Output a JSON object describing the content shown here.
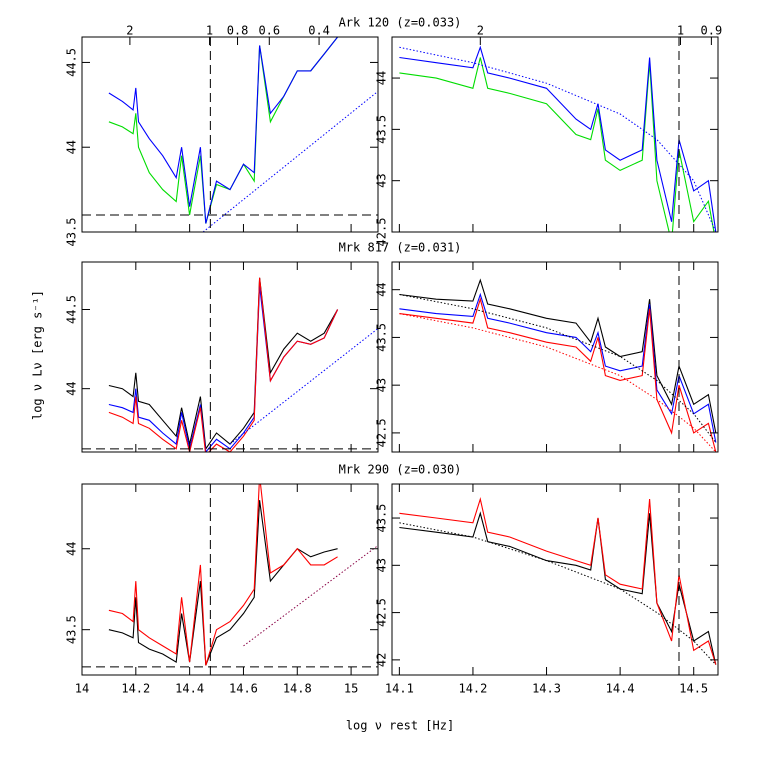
{
  "figure": {
    "xlabel": "log ν rest [Hz]",
    "ylabel": "log ν Lν [erg s⁻¹]"
  },
  "chart_data": [
    {
      "type": "line",
      "title": "Ark 120 (z=0.033)",
      "xlim": [
        14,
        15.1
      ],
      "ylim": [
        43.5,
        44.65
      ],
      "yticks": [
        43.5,
        44,
        44.5
      ],
      "xticks": [
        14,
        14.2,
        14.4,
        14.6,
        14.8,
        15
      ],
      "show_xtick_labels": false,
      "x2ticks": [
        {
          "value": 14.178,
          "label": "2"
        },
        {
          "value": 14.474,
          "label": "1"
        },
        {
          "value": 14.578,
          "label": "0.8"
        },
        {
          "value": 14.696,
          "label": "0.6"
        },
        {
          "value": 14.881,
          "label": "0.4"
        }
      ],
      "hline": 43.6,
      "vline": 14.477,
      "x": [
        14.1,
        14.15,
        14.19,
        14.2,
        14.21,
        14.25,
        14.3,
        14.35,
        14.37,
        14.4,
        14.44,
        14.46,
        14.5,
        14.55,
        14.6,
        14.64,
        14.66,
        14.7,
        14.75,
        14.8,
        14.85,
        14.9,
        14.95
      ],
      "series": [
        {
          "color": "#00dd00",
          "values": [
            44.15,
            44.12,
            44.08,
            44.2,
            44.0,
            43.85,
            43.75,
            43.68,
            43.95,
            43.6,
            43.95,
            43.55,
            43.78,
            43.75,
            43.9,
            43.8,
            44.6,
            44.15,
            44.3,
            44.45,
            44.45,
            44.55,
            44.65
          ]
        },
        {
          "color": "#0000ff",
          "values": [
            44.32,
            44.27,
            44.22,
            44.35,
            44.15,
            44.05,
            43.95,
            43.82,
            44.0,
            43.65,
            44.0,
            43.55,
            43.8,
            43.75,
            43.9,
            43.85,
            44.6,
            44.2,
            44.3,
            44.45,
            44.45,
            44.55,
            44.65
          ]
        },
        {
          "color": "#0000ff",
          "style": "dotted",
          "x": [
            14.45,
            15.1
          ],
          "values": [
            43.5,
            44.33
          ]
        }
      ]
    },
    {
      "type": "line",
      "xlim": [
        14.09,
        14.533
      ],
      "ylim": [
        42.5,
        44.4
      ],
      "yticks": [
        42.5,
        43,
        43.5,
        44
      ],
      "xticks": [
        14.1,
        14.2,
        14.3,
        14.4,
        14.5
      ],
      "show_xtick_labels": false,
      "x2ticks": [
        {
          "value": 14.21,
          "label": "2"
        },
        {
          "value": 14.482,
          "label": "1"
        },
        {
          "value": 14.524,
          "label": "0.9"
        }
      ],
      "vline": 14.48,
      "x": [
        14.1,
        14.15,
        14.2,
        14.21,
        14.22,
        14.25,
        14.3,
        14.34,
        14.36,
        14.37,
        14.38,
        14.4,
        14.43,
        14.44,
        14.45,
        14.47,
        14.48,
        14.5,
        14.52,
        14.53
      ],
      "series": [
        {
          "color": "#00dd00",
          "values": [
            44.05,
            44.0,
            43.9,
            44.2,
            43.9,
            43.85,
            43.75,
            43.45,
            43.4,
            43.7,
            43.2,
            43.1,
            43.2,
            44.15,
            43.0,
            42.4,
            43.3,
            42.6,
            42.8,
            42.4
          ]
        },
        {
          "color": "#0000ff",
          "values": [
            44.2,
            44.15,
            44.1,
            44.3,
            44.05,
            44.0,
            43.9,
            43.6,
            43.5,
            43.75,
            43.3,
            43.2,
            43.3,
            44.2,
            43.2,
            42.6,
            43.4,
            42.9,
            43.0,
            42.5
          ]
        },
        {
          "color": "#0000ff",
          "style": "dotted",
          "x": [
            14.1,
            14.2,
            14.3,
            14.4,
            14.45,
            14.5,
            14.53
          ],
          "values": [
            44.3,
            44.15,
            43.95,
            43.65,
            43.4,
            43.0,
            42.5
          ]
        }
      ]
    },
    {
      "type": "line",
      "title": "Mrk 817 (z=0.031)",
      "xlim": [
        14,
        15.1
      ],
      "ylim": [
        43.6,
        44.8
      ],
      "yticks": [
        44,
        44.5
      ],
      "xticks": [
        14,
        14.2,
        14.4,
        14.6,
        14.8,
        15
      ],
      "show_xtick_labels": false,
      "hline": 43.62,
      "vline": 14.477,
      "x": [
        14.1,
        14.15,
        14.19,
        14.2,
        14.21,
        14.25,
        14.3,
        14.35,
        14.37,
        14.4,
        14.44,
        14.46,
        14.5,
        14.55,
        14.6,
        14.64,
        14.66,
        14.7,
        14.75,
        14.8,
        14.85,
        14.9,
        14.95
      ],
      "series": [
        {
          "color": "#000000",
          "values": [
            44.02,
            44.0,
            43.95,
            44.1,
            43.92,
            43.9,
            43.8,
            43.7,
            43.88,
            43.65,
            43.95,
            43.62,
            43.72,
            43.65,
            43.75,
            43.85,
            44.7,
            44.1,
            44.25,
            44.35,
            44.3,
            44.35,
            44.5
          ]
        },
        {
          "color": "#0000ff",
          "values": [
            43.9,
            43.88,
            43.85,
            44.0,
            43.82,
            43.8,
            43.72,
            43.65,
            43.85,
            43.62,
            43.9,
            43.6,
            43.68,
            43.62,
            43.72,
            43.82,
            44.65,
            44.05,
            44.2,
            44.3,
            44.28,
            44.32,
            44.5
          ]
        },
        {
          "color": "#ff0000",
          "values": [
            43.85,
            43.82,
            43.78,
            43.95,
            43.78,
            43.75,
            43.68,
            43.62,
            43.8,
            43.6,
            43.88,
            43.58,
            43.65,
            43.6,
            43.7,
            43.8,
            44.7,
            44.05,
            44.2,
            44.3,
            44.28,
            44.32,
            44.5
          ]
        },
        {
          "color": "#0000ff",
          "style": "dotted",
          "x": [
            14.55,
            15.1
          ],
          "values": [
            43.65,
            44.38
          ]
        }
      ]
    },
    {
      "type": "line",
      "xlim": [
        14.09,
        14.533
      ],
      "ylim": [
        42.3,
        44.29
      ],
      "yticks": [
        42.5,
        43,
        43.5,
        44
      ],
      "xticks": [
        14.1,
        14.2,
        14.3,
        14.4,
        14.5
      ],
      "show_xtick_labels": false,
      "vline": 14.48,
      "x": [
        14.1,
        14.15,
        14.2,
        14.21,
        14.22,
        14.25,
        14.3,
        14.34,
        14.36,
        14.37,
        14.38,
        14.4,
        14.43,
        14.44,
        14.45,
        14.47,
        14.48,
        14.5,
        14.52,
        14.53
      ],
      "series": [
        {
          "color": "#000000",
          "values": [
            43.95,
            43.9,
            43.88,
            44.1,
            43.85,
            43.8,
            43.7,
            43.65,
            43.45,
            43.7,
            43.4,
            43.3,
            43.35,
            43.9,
            43.1,
            42.8,
            43.2,
            42.8,
            42.9,
            42.5
          ]
        },
        {
          "color": "#0000ff",
          "values": [
            43.8,
            43.75,
            43.72,
            43.95,
            43.7,
            43.65,
            43.55,
            43.5,
            43.35,
            43.55,
            43.2,
            43.15,
            43.2,
            43.85,
            42.95,
            42.7,
            43.1,
            42.7,
            42.8,
            42.4
          ]
        },
        {
          "color": "#ff0000",
          "values": [
            43.75,
            43.7,
            43.65,
            43.9,
            43.6,
            43.55,
            43.45,
            43.4,
            43.25,
            43.5,
            43.1,
            43.05,
            43.1,
            43.8,
            42.85,
            42.5,
            43.0,
            42.5,
            42.6,
            42.3
          ]
        },
        {
          "color": "#000000",
          "style": "dotted",
          "x": [
            14.1,
            14.2,
            14.3,
            14.4,
            14.45,
            14.5,
            14.53
          ],
          "values": [
            43.95,
            43.8,
            43.6,
            43.3,
            43.05,
            42.7,
            42.4
          ]
        },
        {
          "color": "#ff0000",
          "style": "dotted",
          "x": [
            14.1,
            14.2,
            14.3,
            14.4,
            14.45,
            14.5,
            14.53
          ],
          "values": [
            43.75,
            43.6,
            43.4,
            43.1,
            42.85,
            42.55,
            42.3
          ]
        }
      ]
    },
    {
      "type": "line",
      "title": "Mrk 290 (z=0.030)",
      "xlim": [
        14,
        15.1
      ],
      "ylim": [
        43.22,
        44.4
      ],
      "yticks": [
        43.5,
        44
      ],
      "xticks": [
        14,
        14.2,
        14.4,
        14.6,
        14.8,
        15
      ],
      "show_xtick_labels": true,
      "hline": 43.27,
      "vline": 14.477,
      "x": [
        14.1,
        14.15,
        14.19,
        14.2,
        14.21,
        14.25,
        14.3,
        14.35,
        14.37,
        14.4,
        14.44,
        14.46,
        14.5,
        14.55,
        14.6,
        14.64,
        14.66,
        14.7,
        14.75,
        14.8,
        14.85,
        14.9,
        14.95
      ],
      "series": [
        {
          "color": "#000000",
          "values": [
            43.5,
            43.48,
            43.45,
            43.7,
            43.42,
            43.38,
            43.35,
            43.3,
            43.6,
            43.3,
            43.8,
            43.28,
            43.45,
            43.5,
            43.6,
            43.7,
            44.3,
            43.8,
            43.9,
            44.0,
            43.95,
            43.98,
            44.0
          ]
        },
        {
          "color": "#ff0000",
          "values": [
            43.62,
            43.6,
            43.55,
            43.8,
            43.5,
            43.45,
            43.4,
            43.35,
            43.7,
            43.3,
            43.9,
            43.28,
            43.5,
            43.55,
            43.65,
            43.75,
            44.45,
            43.85,
            43.9,
            44.0,
            43.9,
            43.9,
            43.95
          ]
        },
        {
          "color": "#880044",
          "style": "dotted",
          "x": [
            14.6,
            15.1
          ],
          "values": [
            43.4,
            44.02
          ]
        }
      ]
    },
    {
      "type": "line",
      "xlim": [
        14.09,
        14.533
      ],
      "ylim": [
        41.84,
        43.86
      ],
      "yticks": [
        42,
        42.5,
        43,
        43.5
      ],
      "xticks": [
        14.1,
        14.2,
        14.3,
        14.4,
        14.5
      ],
      "show_xtick_labels": true,
      "vline": 14.48,
      "x": [
        14.1,
        14.15,
        14.2,
        14.21,
        14.22,
        14.25,
        14.3,
        14.34,
        14.36,
        14.37,
        14.38,
        14.4,
        14.43,
        14.44,
        14.45,
        14.47,
        14.48,
        14.5,
        14.52,
        14.53
      ],
      "series": [
        {
          "color": "#000000",
          "values": [
            43.4,
            43.35,
            43.3,
            43.55,
            43.25,
            43.2,
            43.05,
            43.0,
            42.95,
            43.5,
            42.85,
            42.75,
            42.7,
            43.55,
            42.6,
            42.3,
            42.8,
            42.2,
            42.3,
            41.95
          ]
        },
        {
          "color": "#ff0000",
          "values": [
            43.55,
            43.5,
            43.45,
            43.7,
            43.35,
            43.3,
            43.15,
            43.05,
            43.0,
            43.5,
            42.9,
            42.8,
            42.75,
            43.7,
            42.6,
            42.2,
            42.9,
            42.1,
            42.2,
            41.95
          ]
        },
        {
          "color": "#000000",
          "style": "dotted",
          "x": [
            14.1,
            14.2,
            14.3,
            14.4,
            14.45,
            14.5,
            14.53
          ],
          "values": [
            43.45,
            43.3,
            43.05,
            42.75,
            42.5,
            42.2,
            41.95
          ]
        }
      ]
    }
  ]
}
